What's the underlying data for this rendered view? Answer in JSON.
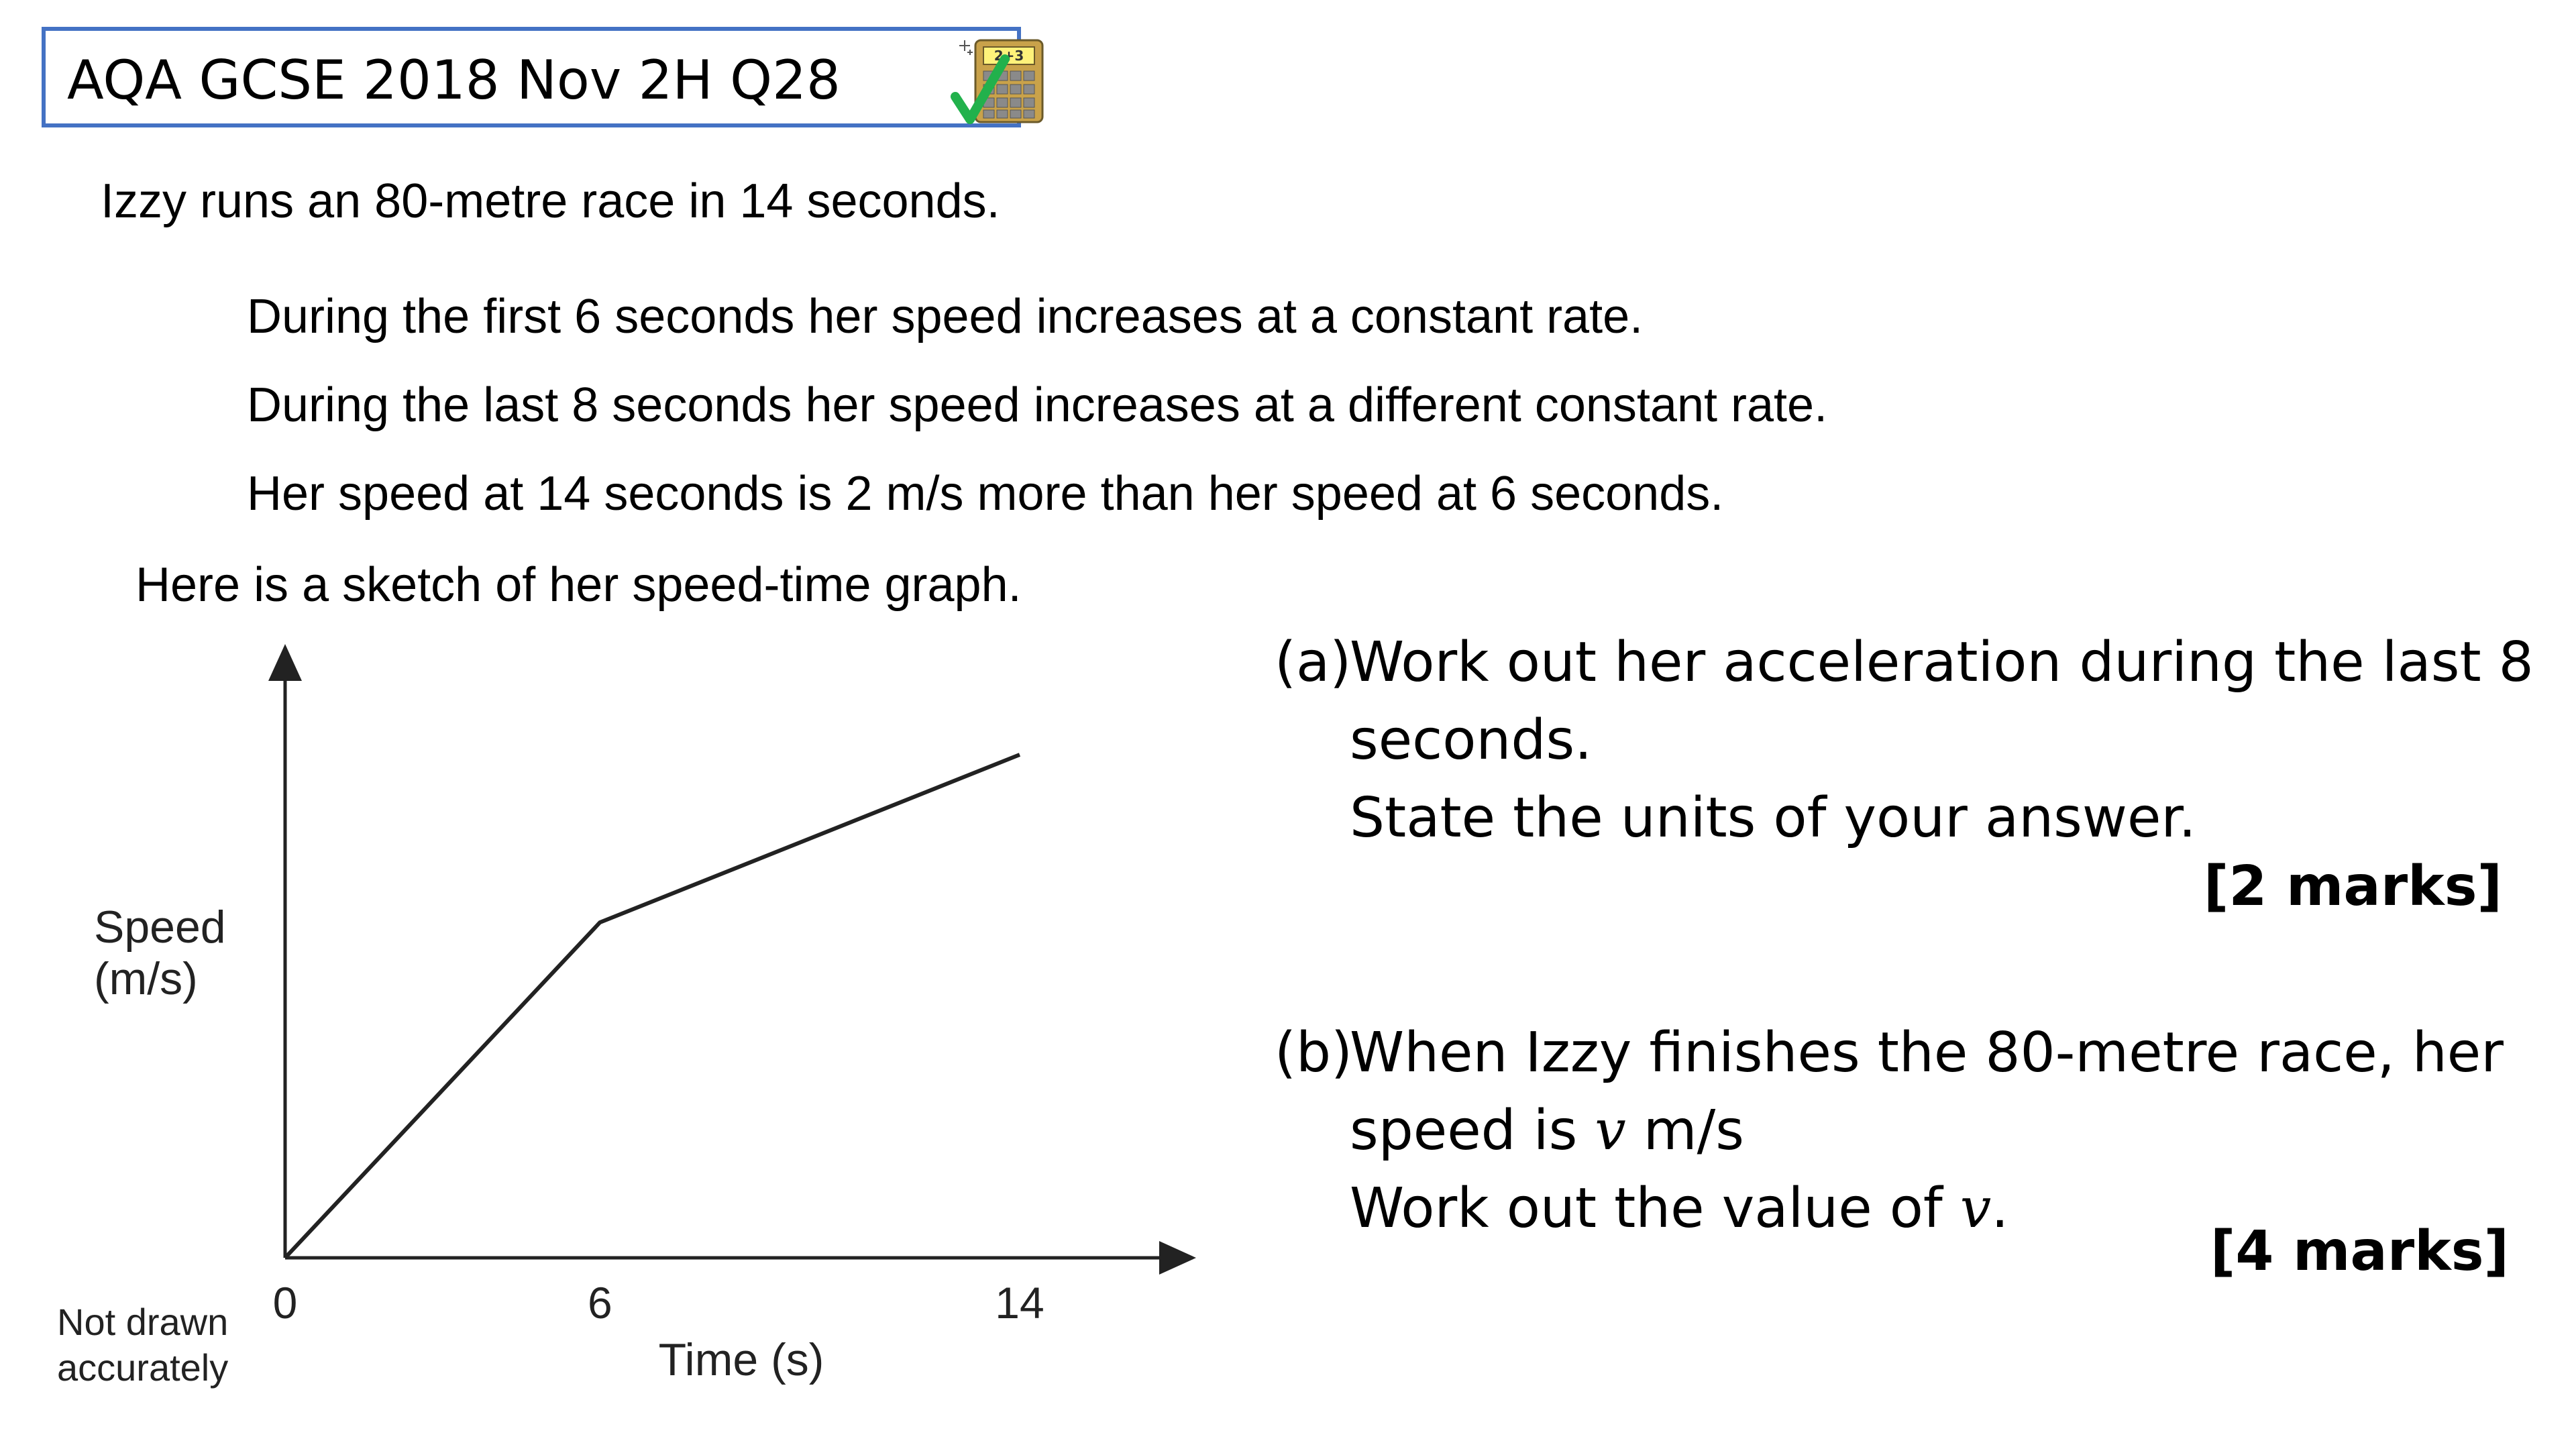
{
  "header": {
    "title": "AQA GCSE 2018 Nov 2H Q28",
    "calculator_badge": "2+3",
    "icon": "calculator-allowed-icon"
  },
  "intro": "Izzy runs an 80-metre race in 14 seconds.",
  "conditions": [
    "During the first 6 seconds her speed increases at a constant rate.",
    "During the last 8 seconds her speed increases at a different constant rate.",
    "Her speed at 14 seconds is 2 m/s more than her speed at 6 seconds."
  ],
  "sketch_intro": "Here is a sketch of her speed-time graph.",
  "part_a": {
    "label": "(a)",
    "line1": "Work out her acceleration during the last 8",
    "line2": "seconds.",
    "line3": "State the units of your answer.",
    "marks": "[2 marks]"
  },
  "part_b": {
    "label": "(b)",
    "line1": "When Izzy finishes the 80-metre race, her",
    "line2_pre": "speed is ",
    "line2_var": "v",
    "line2_post": " m/s",
    "line3_pre": "Work out the value of ",
    "line3_var": "v",
    "line3_post": ".",
    "marks": "[4 marks]"
  },
  "chart_data": {
    "type": "line",
    "x": [
      0,
      6,
      14
    ],
    "y_relative": [
      0,
      1,
      1.5
    ],
    "xticks": [
      "0",
      "6",
      "14"
    ],
    "xlabel": "Time (s)",
    "ylabel_line1": "Speed",
    "ylabel_line2": "(m/s)",
    "note_line1": "Not drawn",
    "note_line2": "accurately",
    "grid": false
  }
}
